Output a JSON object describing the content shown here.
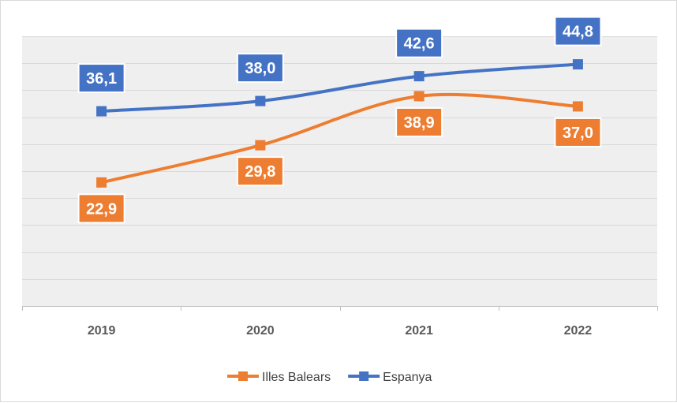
{
  "chart_data": {
    "type": "line",
    "categories": [
      "2019",
      "2020",
      "2021",
      "2022"
    ],
    "series": [
      {
        "name": "Illes Balears",
        "values": [
          22.9,
          29.8,
          38.9,
          37.0
        ],
        "labels": [
          "22,9",
          "29,8",
          "38,9",
          "37,0"
        ],
        "color": "#ed7d31",
        "label_position": "below"
      },
      {
        "name": "Espanya",
        "values": [
          36.1,
          38.0,
          42.6,
          44.8
        ],
        "labels": [
          "36,1",
          "38,0",
          "42,6",
          "44,8"
        ],
        "color": "#4472c4",
        "label_position": "above"
      }
    ],
    "ylim": [
      0,
      50
    ],
    "y_axis_visible": false,
    "grid": true,
    "smooth": true,
    "markers": "square",
    "legend": "bottom",
    "plot_background": "#efefef",
    "gridline_color": "#d9d9d9"
  }
}
